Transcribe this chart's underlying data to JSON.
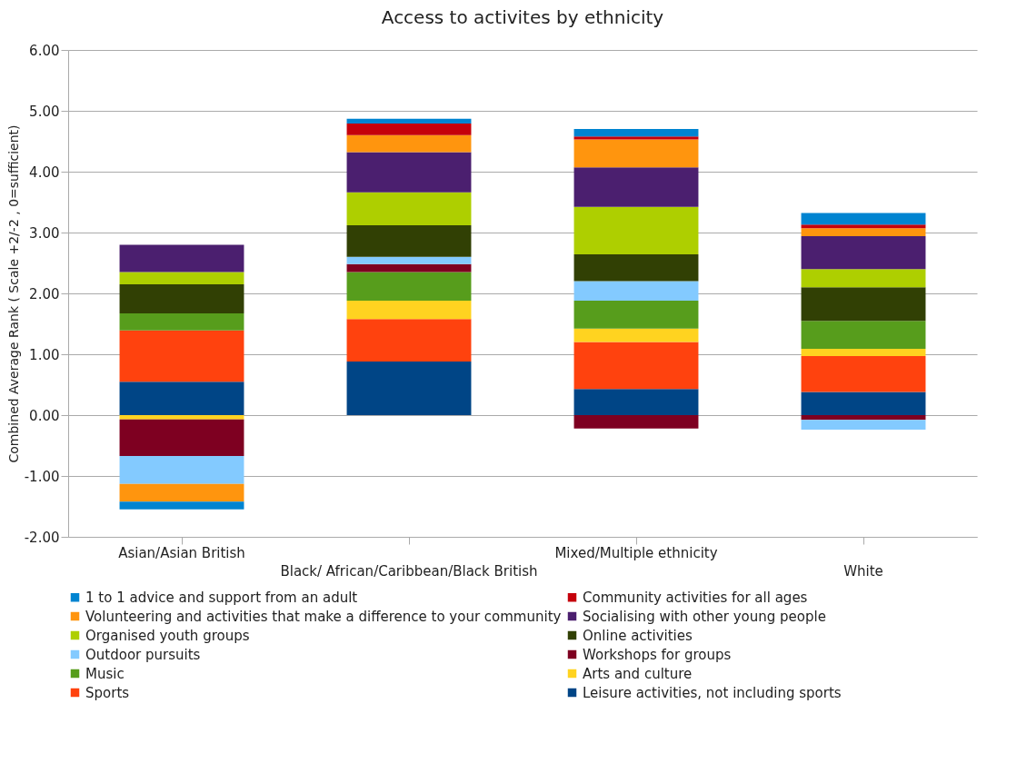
{
  "chart_data": {
    "type": "bar",
    "title": "Access to activites by ethnicity",
    "ylabel": "Combined Average Rank ( Scale +2/-2 , 0=sufficient)",
    "stacked": true,
    "categories": [
      "Asian/Asian British",
      "Black/ African/Caribbean/Black British",
      "Mixed/Multiple ethnicity",
      "White"
    ],
    "ylim": [
      -2,
      6
    ],
    "yticks": [
      {
        "value": -2,
        "label": "-2.00"
      },
      {
        "value": -1,
        "label": "-1.00"
      },
      {
        "value": 0,
        "label": "0.00"
      },
      {
        "value": 1,
        "label": "1.00"
      },
      {
        "value": 2,
        "label": "2.00"
      },
      {
        "value": 3,
        "label": "3.00"
      },
      {
        "value": 4,
        "label": "4.00"
      },
      {
        "value": 5,
        "label": "5.00"
      },
      {
        "value": 6,
        "label": "6.00"
      }
    ],
    "grid": "y",
    "legend": "bottom",
    "series": [
      {
        "name": "Leisure activities, not including sports",
        "color": "#004586",
        "values": [
          0.55,
          0.88,
          0.43,
          0.38
        ]
      },
      {
        "name": "Sports",
        "color": "#ff420e",
        "values": [
          0.84,
          0.7,
          0.77,
          0.59
        ]
      },
      {
        "name": "Arts and culture",
        "color": "#ffd320",
        "values": [
          -0.07,
          0.3,
          0.22,
          0.12
        ]
      },
      {
        "name": "Music",
        "color": "#579d1c",
        "values": [
          0.28,
          0.47,
          0.46,
          0.46
        ]
      },
      {
        "name": "Workshops for groups",
        "color": "#7e0021",
        "values": [
          -0.6,
          0.13,
          -0.22,
          -0.08
        ]
      },
      {
        "name": "Outdoor pursuits",
        "color": "#83caff",
        "values": [
          -0.46,
          0.12,
          0.32,
          -0.16
        ]
      },
      {
        "name": "Online activities",
        "color": "#314004",
        "values": [
          0.48,
          0.52,
          0.44,
          0.55
        ]
      },
      {
        "name": "Organised youth groups",
        "color": "#aecf00",
        "values": [
          0.2,
          0.54,
          0.78,
          0.3
        ]
      },
      {
        "name": "Socialising with other young people",
        "color": "#4b1f6f",
        "values": [
          0.45,
          0.66,
          0.65,
          0.54
        ]
      },
      {
        "name": "Volunteering and activities that make a difference to your community",
        "color": "#ff950e",
        "values": [
          -0.29,
          0.28,
          0.46,
          0.13
        ]
      },
      {
        "name": "Community activities for all ages",
        "color": "#c5000b",
        "values": [
          0,
          0.19,
          0.05,
          0.06
        ]
      },
      {
        "name": "1 to 1 advice and support from an adult",
        "color": "#0084d1",
        "values": [
          -0.13,
          0.08,
          0.12,
          0.19
        ]
      }
    ]
  }
}
